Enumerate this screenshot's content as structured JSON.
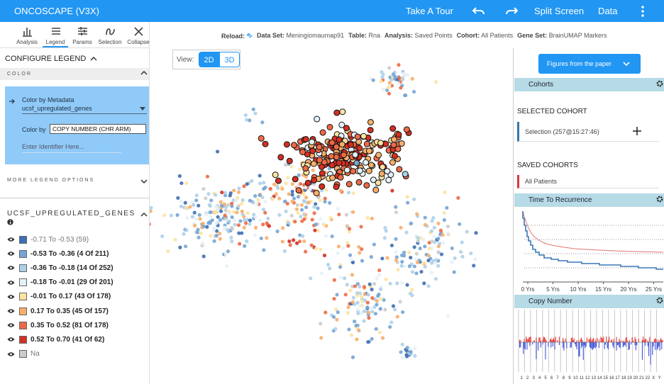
{
  "header": {
    "title": "ONCOSCAPE (V3X)",
    "tour": "Take A Tour",
    "split": "Split Screen",
    "data": "Data"
  },
  "toolbar": [
    "Analysis",
    "Legend",
    "Params",
    "Selection",
    "Collapse"
  ],
  "status_bar": [
    {
      "label": "Reload:"
    },
    {
      "label": "Data Set:",
      "value": "Meningiomaumap91"
    },
    {
      "label": "Table:",
      "value": "Rna"
    },
    {
      "label": "Analysis:",
      "value": "Saved Points"
    },
    {
      "label": "Cohort:",
      "value": "All Patients"
    },
    {
      "label": "Gene Set:",
      "value": "BrainUMAP Markers"
    }
  ],
  "legend_panel": {
    "title": "CONFIGURE LEGEND",
    "color_section": "COLOR",
    "color_by_metadata": "Color by Metadata",
    "metadata_field": "ucsf_upregulated_genes",
    "color_by_label": "Color by",
    "color_by_value": "COPY NUMBER (CHR ARM)",
    "identifier_placeholder": "Enter Identifier Here...",
    "more_options": "MORE LEGEND OPTIONS",
    "legend_title": "UCSF_UPREGULATED_GENES",
    "items": [
      {
        "label": "-0.71 To -0.53 (59)",
        "color": "#3f6fb4",
        "active": false
      },
      {
        "label": "-0.53 To -0.36 (4 Of 211)",
        "color": "#76a5d4",
        "active": true
      },
      {
        "label": "-0.36 To -0.18 (14 Of 252)",
        "color": "#aed0e8",
        "active": true
      },
      {
        "label": "-0.18 To -0.01 (29 Of 201)",
        "color": "#e4f1f8",
        "active": true
      },
      {
        "label": "-0.01 To 0.17 (43 Of 178)",
        "color": "#fde3a2",
        "active": true
      },
      {
        "label": "0.17 To 0.35 (45 Of 157)",
        "color": "#f8ae6a",
        "active": true
      },
      {
        "label": "0.35 To 0.52 (81 Of 178)",
        "color": "#ec6a46",
        "active": true
      },
      {
        "label": "0.52 To 0.70 (41 Of 62)",
        "color": "#d32f22",
        "active": true
      },
      {
        "label": "Na",
        "color": "#cccccc",
        "active": false
      }
    ]
  },
  "view": {
    "label": "View:",
    "options": [
      "2D",
      "3D"
    ],
    "active": "2D"
  },
  "right_panel": {
    "figures_button": "Figures from the paper",
    "cohorts": {
      "title": "Cohorts",
      "selected_title": "SELECTED COHORT",
      "selected": "Selection (257@15:27:46)",
      "saved_title": "SAVED COHORTS",
      "saved": [
        "All Patients"
      ]
    },
    "recurrence": {
      "title": "Time To Recurrence",
      "xticks": [
        "0 Yrs",
        "5 Yrs",
        "10 Yrs",
        "15 Yrs",
        "20 Yrs",
        "25 Yrs"
      ]
    },
    "copy_number": {
      "title": "Copy Number",
      "chromosomes": [
        "1",
        "2",
        "3",
        "4",
        "5",
        "6",
        "7",
        "8",
        "9",
        "10",
        "11",
        "12",
        "13",
        "14",
        "15",
        "16",
        "17",
        "18",
        "19",
        "20",
        "21",
        "22",
        "X",
        "Y"
      ]
    }
  }
}
